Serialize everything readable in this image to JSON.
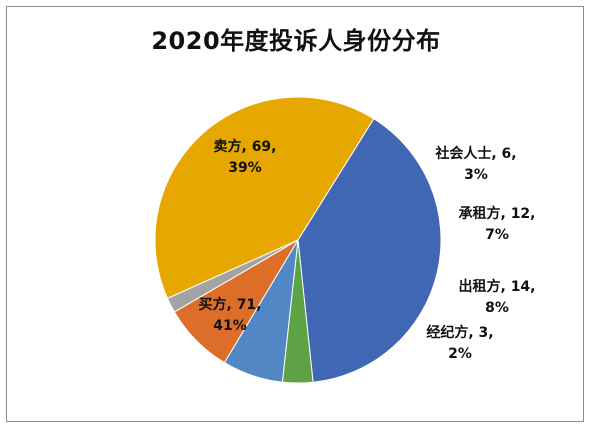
{
  "chart_data": {
    "type": "pie",
    "title": "2020年度投诉人身份分布",
    "slices": [
      {
        "name": "卖方",
        "value": 69,
        "percent": "39%",
        "color": "#3F67B3"
      },
      {
        "name": "社会人士",
        "value": 6,
        "percent": "3%",
        "color": "#5DA345"
      },
      {
        "name": "承租方",
        "value": 12,
        "percent": "7%",
        "color": "#5287C6"
      },
      {
        "name": "出租方",
        "value": 14,
        "percent": "8%",
        "color": "#DD6E2A"
      },
      {
        "name": "经纪方",
        "value": 3,
        "percent": "2%",
        "color": "#A3A3A3"
      },
      {
        "name": "买方",
        "value": 71,
        "percent": "41%",
        "color": "#E6A800"
      }
    ],
    "labels": [
      {
        "line1": "卖方, 69,",
        "line2": "39%"
      },
      {
        "line1": "社会人士, 6,",
        "line2": "3%"
      },
      {
        "line1": "承租方, 12,",
        "line2": "7%"
      },
      {
        "line1": "出租方, 14,",
        "line2": "8%"
      },
      {
        "line1": "经纪方, 3,",
        "line2": "2%"
      },
      {
        "line1": "买方, 71,",
        "line2": "41%"
      }
    ],
    "start_angle_deg": -58,
    "direction": "clockwise"
  }
}
